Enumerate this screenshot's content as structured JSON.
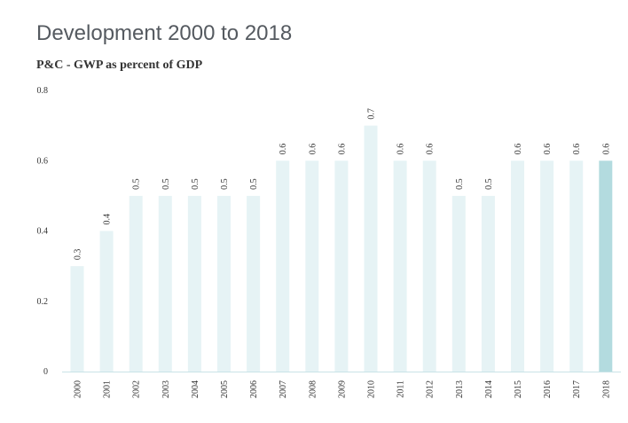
{
  "chart_data": {
    "type": "bar",
    "title": "Development 2000 to 2018",
    "subtitle": "P&C - GWP as percent of GDP",
    "categories": [
      "2000",
      "2001",
      "2002",
      "2003",
      "2004",
      "2005",
      "2006",
      "2007",
      "2008",
      "2009",
      "2010",
      "2011",
      "2012",
      "2013",
      "2014",
      "2015",
      "2016",
      "2017",
      "2018"
    ],
    "values": [
      0.3,
      0.4,
      0.5,
      0.5,
      0.5,
      0.5,
      0.5,
      0.6,
      0.6,
      0.6,
      0.7,
      0.6,
      0.6,
      0.5,
      0.5,
      0.6,
      0.6,
      0.6,
      0.6
    ],
    "data_labels": [
      "0.3",
      "0.4",
      "0.5",
      "0.5",
      "0.5",
      "0.5",
      "0.5",
      "0.6",
      "0.6",
      "0.6",
      "0.7",
      "0.6",
      "0.6",
      "0.5",
      "0.5",
      "0.6",
      "0.6",
      "0.6",
      "0.6"
    ],
    "yticks": [
      0,
      0.2,
      0.4,
      0.6,
      0.8
    ],
    "ytick_labels": [
      "0",
      "0.2",
      "0.4",
      "0.6",
      "0.8"
    ],
    "ylim": [
      0,
      0.8
    ],
    "xlabel": "",
    "ylabel": "",
    "grid": false,
    "legend": "none",
    "colors": {
      "bar": "#e6f3f5",
      "highlight": "#b3dbdf",
      "axis": "#c9e3e7"
    },
    "highlight_index": 18
  }
}
